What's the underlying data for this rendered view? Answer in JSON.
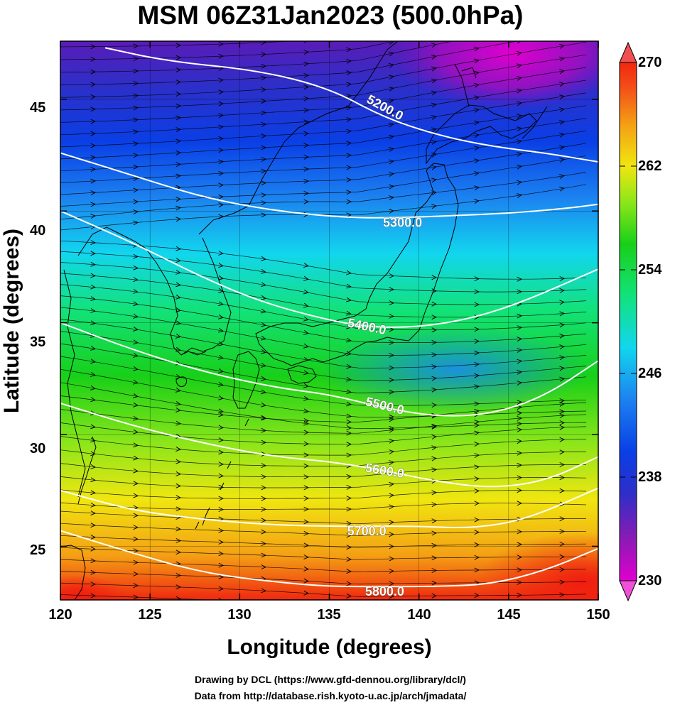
{
  "title": "MSM 06Z31Jan2023 (500.0hPa)",
  "xlabel": "Longitude (degrees)",
  "ylabel": "Latitude  (degrees)",
  "credits": [
    "Drawing by DCL (https://www.gfd-dennou.org/library/dcl/)",
    "Data from http://database.rish.kyoto-u.ac.jp/arch/jmadata/"
  ],
  "x_ticks": [
    "120",
    "125",
    "130",
    "135",
    "140",
    "145",
    "150"
  ],
  "y_ticks": [
    "45",
    "40",
    "35",
    "30",
    "25"
  ],
  "colorbar": {
    "min": 230,
    "max": 270,
    "ticks": [
      "270",
      "262",
      "254",
      "246",
      "238",
      "230"
    ],
    "colors": [
      "#e000d0",
      "#8c1ab4",
      "#2d2fc8",
      "#0a3fe6",
      "#1c82f0",
      "#12d6ee",
      "#12e27a",
      "#18d018",
      "#8ce61a",
      "#f0e610",
      "#f4a014",
      "#f45018",
      "#f02810"
    ]
  },
  "map": {
    "lon_range": [
      120,
      150
    ],
    "lat_range": [
      22.6,
      47.6
    ],
    "contours": [
      {
        "label": "5200.0",
        "points": [
          [
            122.5,
            47.3
          ],
          [
            126,
            46.7
          ],
          [
            131,
            46.3
          ],
          [
            135,
            45.5
          ],
          [
            138,
            44.2
          ],
          [
            141,
            43.4
          ],
          [
            144,
            42.9
          ],
          [
            147,
            42.6
          ],
          [
            150,
            42.2
          ]
        ]
      },
      {
        "label": "5300.0",
        "points": [
          [
            120,
            42.6
          ],
          [
            124,
            41.6
          ],
          [
            128,
            40.6
          ],
          [
            132,
            40.0
          ],
          [
            136,
            39.7
          ],
          [
            139,
            39.7
          ],
          [
            142,
            39.8
          ],
          [
            145,
            39.9
          ],
          [
            148,
            40.1
          ],
          [
            150,
            40.3
          ]
        ]
      },
      {
        "label": "5400.0",
        "points": [
          [
            120,
            40.0
          ],
          [
            124,
            38.6
          ],
          [
            128,
            37.0
          ],
          [
            131,
            36.0
          ],
          [
            134,
            35.3
          ],
          [
            137,
            34.8
          ],
          [
            140,
            34.8
          ],
          [
            143,
            35.2
          ],
          [
            146,
            36.0
          ],
          [
            150,
            37.4
          ]
        ]
      },
      {
        "label": "5500.0",
        "points": [
          [
            120,
            35.0
          ],
          [
            124,
            33.8
          ],
          [
            128,
            32.8
          ],
          [
            132,
            32.1
          ],
          [
            135,
            31.8
          ],
          [
            138,
            31.2
          ],
          [
            141,
            30.8
          ],
          [
            144,
            30.9
          ],
          [
            147,
            31.7
          ],
          [
            150,
            33.3
          ]
        ]
      },
      {
        "label": "5600.0",
        "points": [
          [
            120,
            31.4
          ],
          [
            124,
            30.4
          ],
          [
            128,
            29.6
          ],
          [
            132,
            29.0
          ],
          [
            135,
            28.8
          ],
          [
            138,
            28.4
          ],
          [
            141,
            27.9
          ],
          [
            144,
            27.6
          ],
          [
            147,
            27.9
          ],
          [
            150,
            29.0
          ]
        ]
      },
      {
        "label": "5700.0",
        "points": [
          [
            120,
            27.5
          ],
          [
            124,
            26.6
          ],
          [
            128,
            26.2
          ],
          [
            131,
            26.0
          ],
          [
            134,
            25.9
          ],
          [
            137,
            25.9
          ],
          [
            140,
            25.9
          ],
          [
            143,
            25.8
          ],
          [
            146,
            26.2
          ],
          [
            150,
            27.6
          ]
        ]
      },
      {
        "label": "5800.0",
        "points": [
          [
            120,
            25.7
          ],
          [
            124,
            24.7
          ],
          [
            128,
            23.8
          ],
          [
            132,
            23.4
          ],
          [
            135,
            23.2
          ],
          [
            138,
            23.2
          ],
          [
            141,
            23.2
          ],
          [
            144,
            23.3
          ],
          [
            147,
            23.9
          ],
          [
            150,
            24.9
          ]
        ]
      }
    ]
  }
}
